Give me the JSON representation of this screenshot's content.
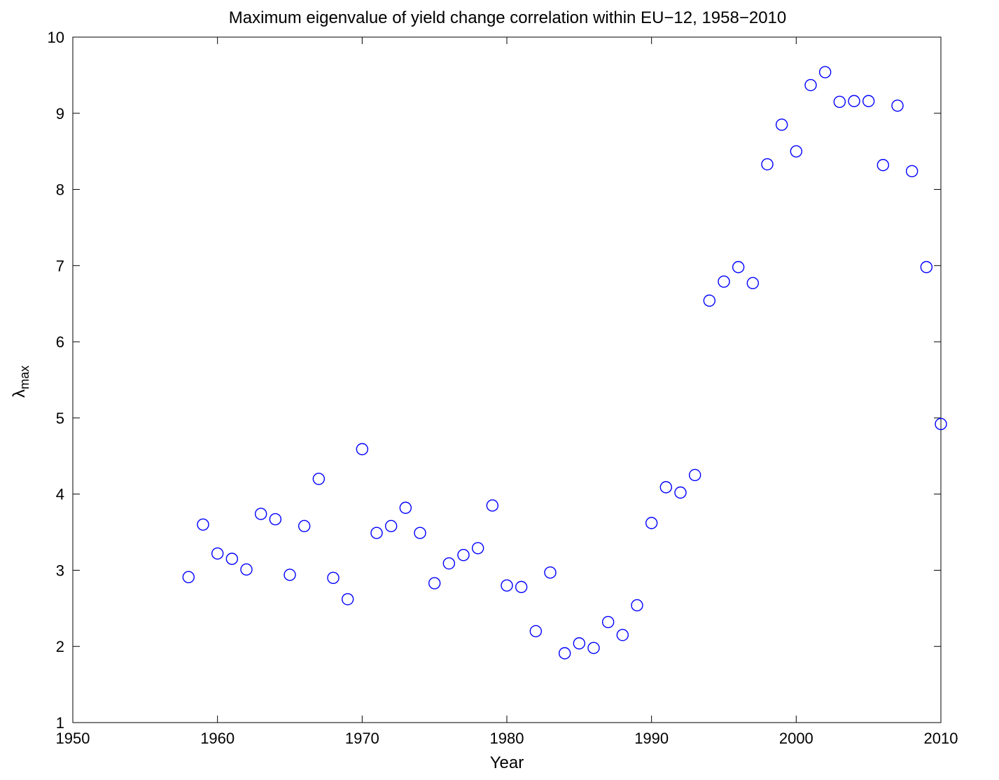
{
  "chart_data": {
    "type": "scatter",
    "title": "Maximum eigenvalue of yield change correlation within EU−12, 1958−2010",
    "xlabel": "Year",
    "ylabel_main": "λ",
    "ylabel_sub": "max",
    "xlim": [
      1950,
      2010
    ],
    "ylim": [
      1,
      10
    ],
    "xticks": [
      "1950",
      "1960",
      "1970",
      "1980",
      "1990",
      "2000",
      "2010"
    ],
    "yticks": [
      "1",
      "2",
      "3",
      "4",
      "5",
      "6",
      "7",
      "8",
      "9",
      "10"
    ],
    "marker": "circle",
    "marker_color": "#0000ff",
    "grid": false,
    "x": [
      1958,
      1959,
      1960,
      1961,
      1962,
      1963,
      1964,
      1965,
      1966,
      1967,
      1968,
      1969,
      1970,
      1971,
      1972,
      1973,
      1974,
      1975,
      1976,
      1977,
      1978,
      1979,
      1980,
      1981,
      1982,
      1983,
      1984,
      1985,
      1986,
      1987,
      1988,
      1989,
      1990,
      1991,
      1992,
      1993,
      1994,
      1995,
      1996,
      1997,
      1998,
      1999,
      2000,
      2001,
      2002,
      2003,
      2004,
      2005,
      2006,
      2007,
      2008,
      2009,
      2010
    ],
    "y": [
      2.91,
      3.6,
      3.22,
      3.15,
      3.01,
      3.74,
      3.67,
      2.94,
      3.58,
      4.2,
      2.9,
      2.62,
      4.59,
      3.49,
      3.58,
      3.82,
      3.49,
      2.83,
      3.09,
      3.2,
      3.29,
      3.85,
      2.8,
      2.78,
      2.2,
      2.97,
      1.91,
      2.04,
      1.98,
      2.32,
      2.15,
      2.54,
      3.62,
      4.09,
      4.02,
      4.25,
      6.54,
      6.79,
      6.98,
      6.77,
      8.33,
      8.85,
      8.5,
      9.37,
      9.54,
      9.15,
      9.16,
      9.16,
      8.32,
      9.1,
      8.24,
      6.98,
      4.92
    ]
  }
}
